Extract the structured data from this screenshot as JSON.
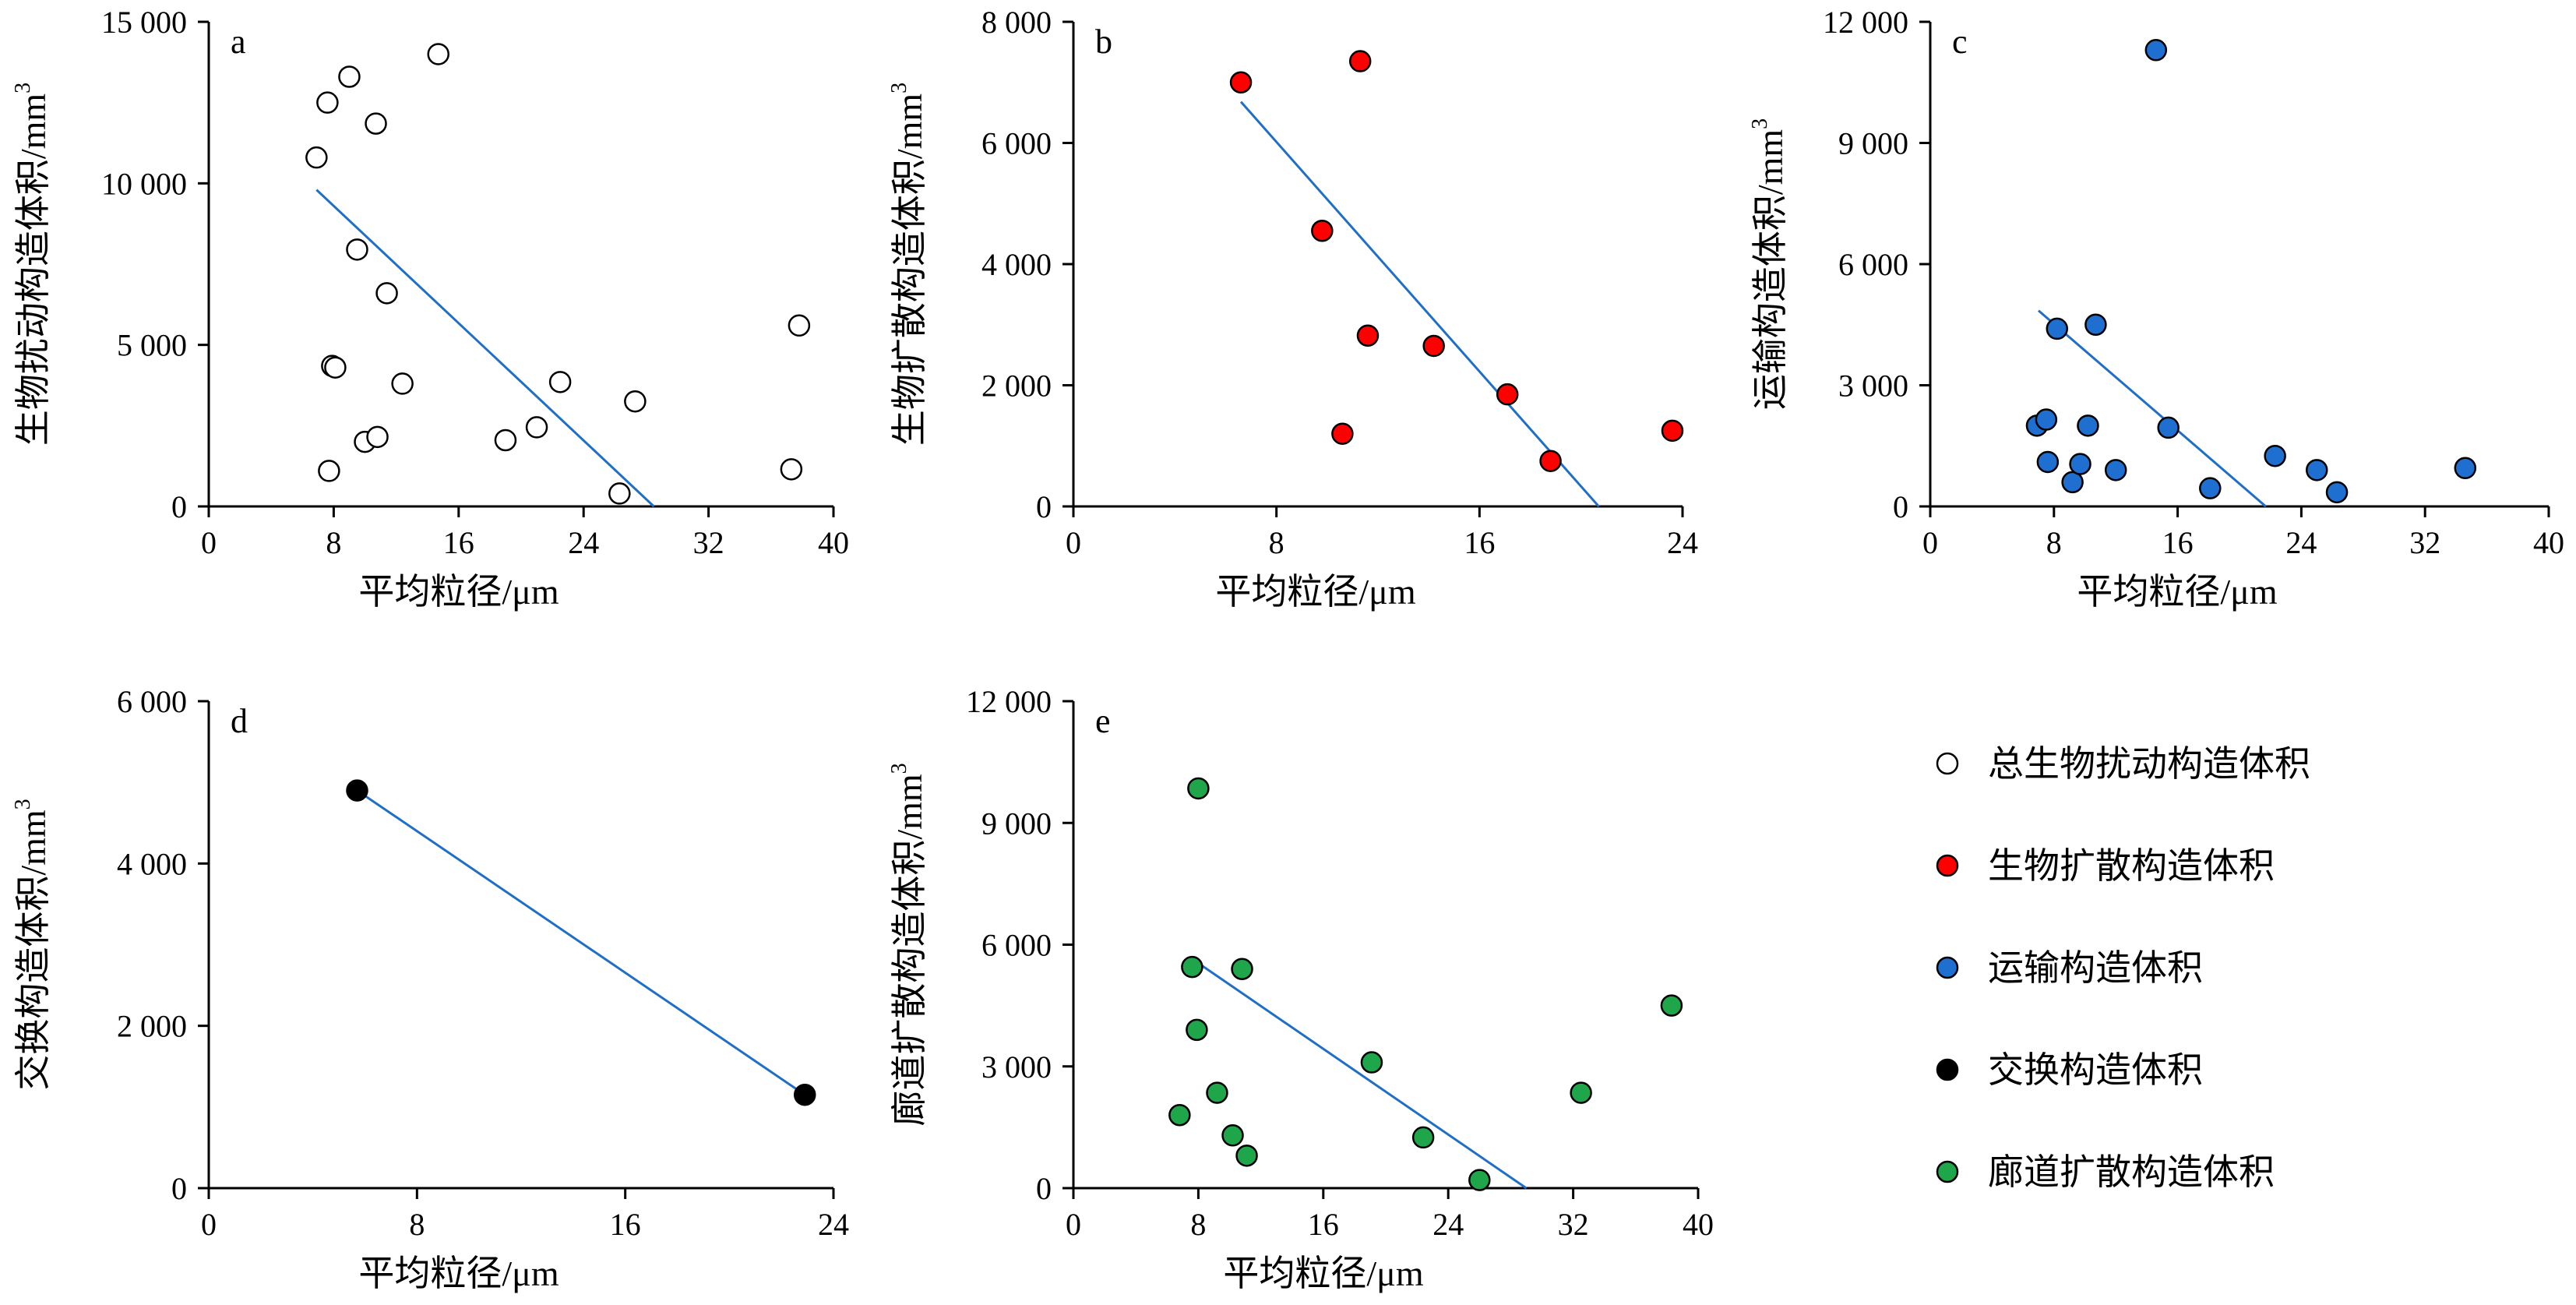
{
  "chart_data": [
    {
      "panel": "a",
      "type": "scatter",
      "xlabel": "平均粒径/μm",
      "ylabel": "生物扰动构造体积/mm",
      "ylabel_sup": "3",
      "xlim": [
        0,
        40
      ],
      "ylim": [
        0,
        15000
      ],
      "xticks": [
        0,
        8,
        16,
        24,
        32,
        40
      ],
      "xtick_labels": [
        "0",
        "8",
        "16",
        "24",
        "32",
        "40"
      ],
      "yticks": [
        0,
        5000,
        10000,
        15000
      ],
      "ytick_labels": [
        "0",
        "5 000",
        "10 000",
        "15 000"
      ],
      "series": [
        {
          "legend": "总生物扰动构造体积",
          "color": "#ffffff",
          "points": [
            {
              "x": 6.9,
              "y": 10800
            },
            {
              "x": 7.6,
              "y": 12500
            },
            {
              "x": 7.7,
              "y": 1100
            },
            {
              "x": 7.9,
              "y": 4350
            },
            {
              "x": 8.1,
              "y": 4300
            },
            {
              "x": 9.0,
              "y": 13300
            },
            {
              "x": 9.5,
              "y": 7950
            },
            {
              "x": 10.0,
              "y": 2000
            },
            {
              "x": 10.7,
              "y": 11850
            },
            {
              "x": 10.8,
              "y": 2150
            },
            {
              "x": 11.4,
              "y": 6600
            },
            {
              "x": 12.4,
              "y": 3800
            },
            {
              "x": 14.7,
              "y": 14000
            },
            {
              "x": 19.0,
              "y": 2050
            },
            {
              "x": 21.0,
              "y": 2450
            },
            {
              "x": 22.5,
              "y": 3850
            },
            {
              "x": 26.3,
              "y": 400
            },
            {
              "x": 27.3,
              "y": 3250
            },
            {
              "x": 37.3,
              "y": 1150
            },
            {
              "x": 37.8,
              "y": 5600
            }
          ],
          "trendline": {
            "x": [
              6.9,
              28.5
            ],
            "y": [
              9800,
              0
            ]
          }
        }
      ]
    },
    {
      "panel": "b",
      "type": "scatter",
      "xlabel": "平均粒径/μm",
      "ylabel": "生物扩散构造体积/mm",
      "ylabel_sup": "3",
      "xlim": [
        0,
        24
      ],
      "ylim": [
        0,
        8000
      ],
      "xticks": [
        0,
        8,
        16,
        24
      ],
      "xtick_labels": [
        "0",
        "8",
        "16",
        "24"
      ],
      "yticks": [
        0,
        2000,
        4000,
        6000,
        8000
      ],
      "ytick_labels": [
        "0",
        "2 000",
        "4 000",
        "6 000",
        "8 000"
      ],
      "series": [
        {
          "legend": "生物扩散构造体积",
          "color": "#ff0000",
          "points": [
            {
              "x": 6.6,
              "y": 7000
            },
            {
              "x": 9.8,
              "y": 4550
            },
            {
              "x": 10.6,
              "y": 1200
            },
            {
              "x": 11.3,
              "y": 7350
            },
            {
              "x": 11.6,
              "y": 2820
            },
            {
              "x": 14.2,
              "y": 2650
            },
            {
              "x": 17.1,
              "y": 1850
            },
            {
              "x": 18.8,
              "y": 750
            },
            {
              "x": 23.6,
              "y": 1250
            }
          ],
          "trendline": {
            "x": [
              6.6,
              20.7
            ],
            "y": [
              6680,
              0
            ]
          }
        }
      ]
    },
    {
      "panel": "c",
      "type": "scatter",
      "xlabel": "平均粒径/μm",
      "ylabel": "运输构造体积/mm",
      "ylabel_sup": "3",
      "xlim": [
        0,
        40
      ],
      "ylim": [
        0,
        12000
      ],
      "xticks": [
        0,
        8,
        16,
        24,
        32,
        40
      ],
      "xtick_labels": [
        "0",
        "8",
        "16",
        "24",
        "32",
        "40"
      ],
      "yticks": [
        0,
        3000,
        6000,
        9000,
        12000
      ],
      "ytick_labels": [
        "0",
        "3 000",
        "6 000",
        "9 000",
        "12 000"
      ],
      "series": [
        {
          "legend": "运输构造体积",
          "color": "#1f6fd1",
          "points": [
            {
              "x": 6.9,
              "y": 2000
            },
            {
              "x": 7.5,
              "y": 2150
            },
            {
              "x": 7.6,
              "y": 1100
            },
            {
              "x": 8.2,
              "y": 4400
            },
            {
              "x": 9.2,
              "y": 600
            },
            {
              "x": 9.7,
              "y": 1050
            },
            {
              "x": 10.2,
              "y": 2000
            },
            {
              "x": 10.7,
              "y": 4500
            },
            {
              "x": 12.0,
              "y": 900
            },
            {
              "x": 14.6,
              "y": 11300
            },
            {
              "x": 15.4,
              "y": 1950
            },
            {
              "x": 18.1,
              "y": 450
            },
            {
              "x": 22.3,
              "y": 1250
            },
            {
              "x": 25.0,
              "y": 900
            },
            {
              "x": 26.3,
              "y": 350
            },
            {
              "x": 34.6,
              "y": 950
            }
          ],
          "trendline": {
            "x": [
              7.0,
              21.7
            ],
            "y": [
              4850,
              0
            ]
          }
        }
      ]
    },
    {
      "panel": "d",
      "type": "scatter",
      "xlabel": "平均粒径/μm",
      "ylabel": "交换构造体积/mm",
      "ylabel_sup": "3",
      "xlim": [
        0,
        24
      ],
      "ylim": [
        0,
        6000
      ],
      "xticks": [
        0,
        8,
        16,
        24
      ],
      "xtick_labels": [
        "0",
        "8",
        "16",
        "24"
      ],
      "yticks": [
        0,
        2000,
        4000,
        6000
      ],
      "ytick_labels": [
        "0",
        "2 000",
        "4 000",
        "6 000"
      ],
      "series": [
        {
          "legend": "交换构造体积",
          "color": "#000000",
          "points": [
            {
              "x": 5.7,
              "y": 4900
            },
            {
              "x": 22.9,
              "y": 1150
            }
          ],
          "trendline": {
            "x": [
              5.7,
              22.9
            ],
            "y": [
              4900,
              1150
            ]
          }
        }
      ]
    },
    {
      "panel": "e",
      "type": "scatter",
      "xlabel": "平均粒径/μm",
      "ylabel": "廊道扩散构造体积/mm",
      "ylabel_sup": "3",
      "xlim": [
        0,
        40
      ],
      "ylim": [
        0,
        12000
      ],
      "xticks": [
        0,
        8,
        16,
        24,
        32,
        40
      ],
      "xtick_labels": [
        "0",
        "8",
        "16",
        "24",
        "32",
        "40"
      ],
      "yticks": [
        0,
        3000,
        6000,
        9000,
        12000
      ],
      "ytick_labels": [
        "0",
        "3 000",
        "6 000",
        "9 000",
        "12 000"
      ],
      "series": [
        {
          "legend": "廊道扩散构造体积",
          "color": "#1fa64a",
          "points": [
            {
              "x": 6.8,
              "y": 1800
            },
            {
              "x": 7.6,
              "y": 5450
            },
            {
              "x": 7.9,
              "y": 3900
            },
            {
              "x": 8.0,
              "y": 9850
            },
            {
              "x": 9.2,
              "y": 2350
            },
            {
              "x": 10.2,
              "y": 1300
            },
            {
              "x": 10.8,
              "y": 5400
            },
            {
              "x": 11.1,
              "y": 800
            },
            {
              "x": 19.1,
              "y": 3100
            },
            {
              "x": 22.4,
              "y": 1250
            },
            {
              "x": 26.0,
              "y": 200
            },
            {
              "x": 32.5,
              "y": 2350
            },
            {
              "x": 38.3,
              "y": 4500
            }
          ],
          "trendline": {
            "x": [
              7.6,
              29.0
            ],
            "y": [
              5650,
              0
            ]
          }
        }
      ]
    }
  ],
  "colors": {
    "trendline": "#1f6fc8",
    "marker_edge": "#000000"
  }
}
